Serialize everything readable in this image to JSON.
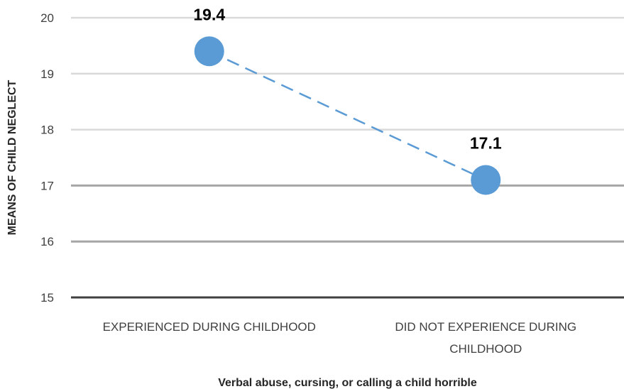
{
  "chart_data": {
    "type": "line",
    "categories": [
      [
        "EXPERIENCED DURING CHILDHOOD"
      ],
      [
        "DID NOT EXPERIENCE DURING",
        "CHILDHOOD"
      ]
    ],
    "series": [
      {
        "values": [
          19.4,
          17.1
        ]
      }
    ],
    "data_labels": [
      "19.4",
      "17.1"
    ],
    "xlabel": "Verbal abuse, cursing, or calling a child horrible",
    "ylabel": "MEANS OF CHILD NEGLECT",
    "ylim": [
      15,
      20
    ],
    "yticks": [
      "15",
      "16",
      "17",
      "18",
      "19",
      "20"
    ],
    "grid": true,
    "line_style": "dashed",
    "colors": {
      "series": "#5b9bd5",
      "grid_light": "#d9d9d9",
      "grid_mid": "#a6a6a6",
      "axis": "#404040"
    }
  }
}
